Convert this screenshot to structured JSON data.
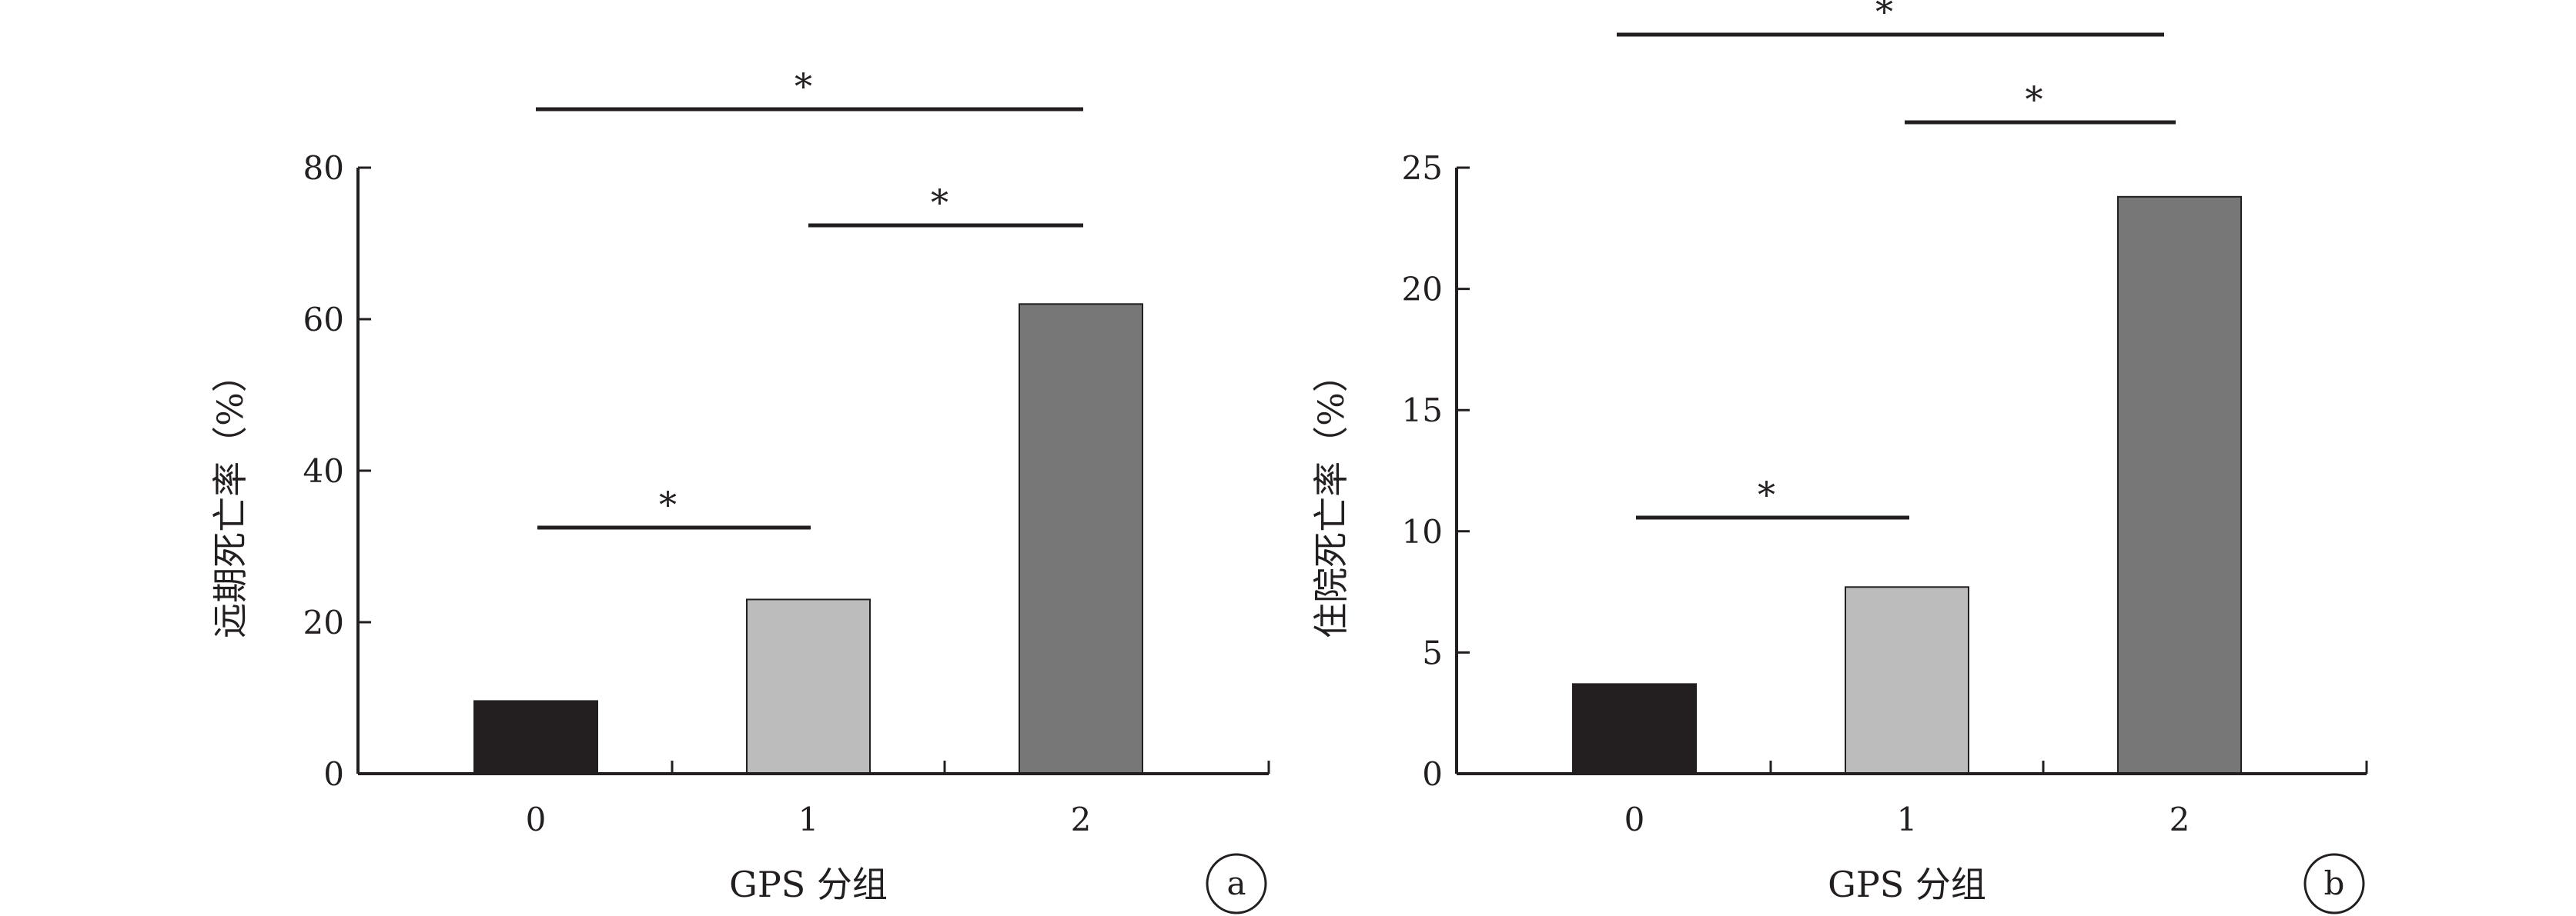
{
  "chart_data": [
    {
      "type": "bar",
      "panel": "a",
      "categories": [
        "0",
        "1",
        "2"
      ],
      "values": [
        9.6,
        23.0,
        62.0
      ],
      "bar_colors": [
        "#231f20",
        "#bcbcbc",
        "#787778"
      ],
      "xlabel": "GPS 分组",
      "ylabel": "远期死亡率（%）",
      "ylim": [
        0,
        80
      ],
      "yticks": [
        "0",
        "20",
        "40",
        "60",
        "80"
      ],
      "significance": [
        {
          "from": "0",
          "to": "1",
          "label": "*"
        },
        {
          "from": "1",
          "to": "2",
          "label": "*"
        },
        {
          "from": "0",
          "to": "2",
          "label": "*"
        }
      ],
      "grid": false,
      "legend": "none"
    },
    {
      "type": "bar",
      "panel": "b",
      "categories": [
        "0",
        "1",
        "2"
      ],
      "values": [
        3.7,
        7.7,
        23.8
      ],
      "bar_colors": [
        "#231f20",
        "#bcbcbc",
        "#787778"
      ],
      "xlabel": "GPS 分组",
      "ylabel": "住院死亡率（%）",
      "ylim": [
        0,
        25
      ],
      "yticks": [
        "0",
        "5",
        "10",
        "15",
        "20",
        "25"
      ],
      "significance": [
        {
          "from": "0",
          "to": "1",
          "label": "*"
        },
        {
          "from": "1",
          "to": "2",
          "label": "*"
        },
        {
          "from": "0",
          "to": "2",
          "label": "*"
        }
      ],
      "grid": false,
      "legend": "none"
    }
  ]
}
